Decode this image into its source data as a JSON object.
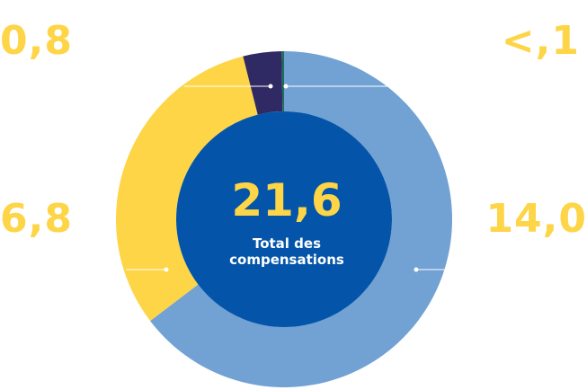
{
  "colors": {
    "label": "#FDD547",
    "center_fill": "#0455A9",
    "caption_text": "#FFFFFF",
    "connector": "#FFFFFF"
  },
  "center": {
    "total": "21,6",
    "caption_line1": "Total des",
    "caption_line2": "compensations"
  },
  "chart_data": {
    "type": "pie",
    "title": "",
    "series": [
      {
        "value": 14.0,
        "label": "14,0",
        "color": "#71A2D3"
      },
      {
        "value": 6.8,
        "label": "6,8",
        "color": "#FDD547"
      },
      {
        "value": 0.8,
        "label": "0,8",
        "color": "#2F2A64"
      },
      {
        "value": 0.05,
        "label": "<,1",
        "color": "#1F6B5C"
      }
    ],
    "total": 21.6
  }
}
